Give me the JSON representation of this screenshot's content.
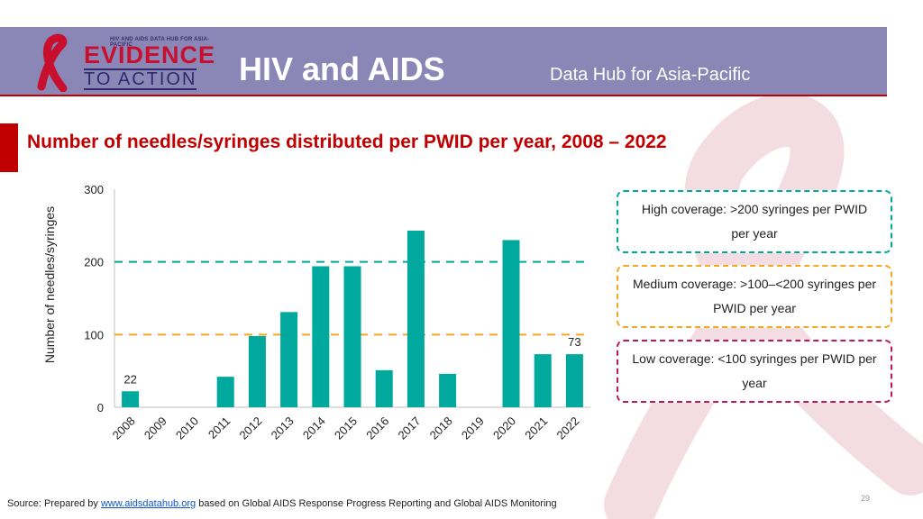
{
  "header": {
    "logo_small_text": "HIV AND AIDS DATA HUB FOR ASIA-PACIFIC",
    "logo_evidence": "EVIDENCE",
    "logo_action": "TO ACTION",
    "title": "HIV and AIDS",
    "subtitle": "Data Hub for Asia-Pacific"
  },
  "colors": {
    "header_bg": "#8a86b6",
    "accent_red": "#c00000",
    "bar": "#00a99d",
    "high": "#00a99d",
    "medium": "#f5a623",
    "low": "#c2185b"
  },
  "chart_data": {
    "type": "bar",
    "title": "Number of needles/syringes distributed per PWID per year, 2008 – 2022",
    "ylabel": "Number of needles/syringes",
    "xlabel": "",
    "ylim": [
      0,
      300
    ],
    "yticks": [
      0,
      100,
      200,
      300
    ],
    "grid": false,
    "categories": [
      "2008",
      "2009",
      "2010",
      "2011",
      "2012",
      "2013",
      "2014",
      "2015",
      "2016",
      "2017",
      "2018",
      "2019",
      "2020",
      "2021",
      "2022"
    ],
    "values": [
      22,
      0,
      0,
      42,
      98,
      131,
      194,
      194,
      51,
      243,
      46,
      0,
      230,
      73,
      73
    ],
    "data_labels": [
      {
        "category": "2008",
        "text": "22"
      },
      {
        "category": "2022",
        "text": "73"
      }
    ],
    "reference_lines": [
      {
        "value": 200,
        "color": "#00a99d"
      },
      {
        "value": 100,
        "color": "#f5a623"
      }
    ],
    "legend": {
      "placement": "right",
      "high": "High coverage: >200 syringes per PWID per year",
      "medium": "Medium coverage: >100–<200 syringes per PWID per year",
      "low": "Low coverage: <100 syringes per PWID per year"
    }
  },
  "footer": {
    "source_prefix": "Source: Prepared by ",
    "source_link": "www.aidsdatahub.org",
    "source_suffix": " based on  Global AIDS Response Progress Reporting and Global AIDS Monitoring",
    "page_number": "29"
  }
}
